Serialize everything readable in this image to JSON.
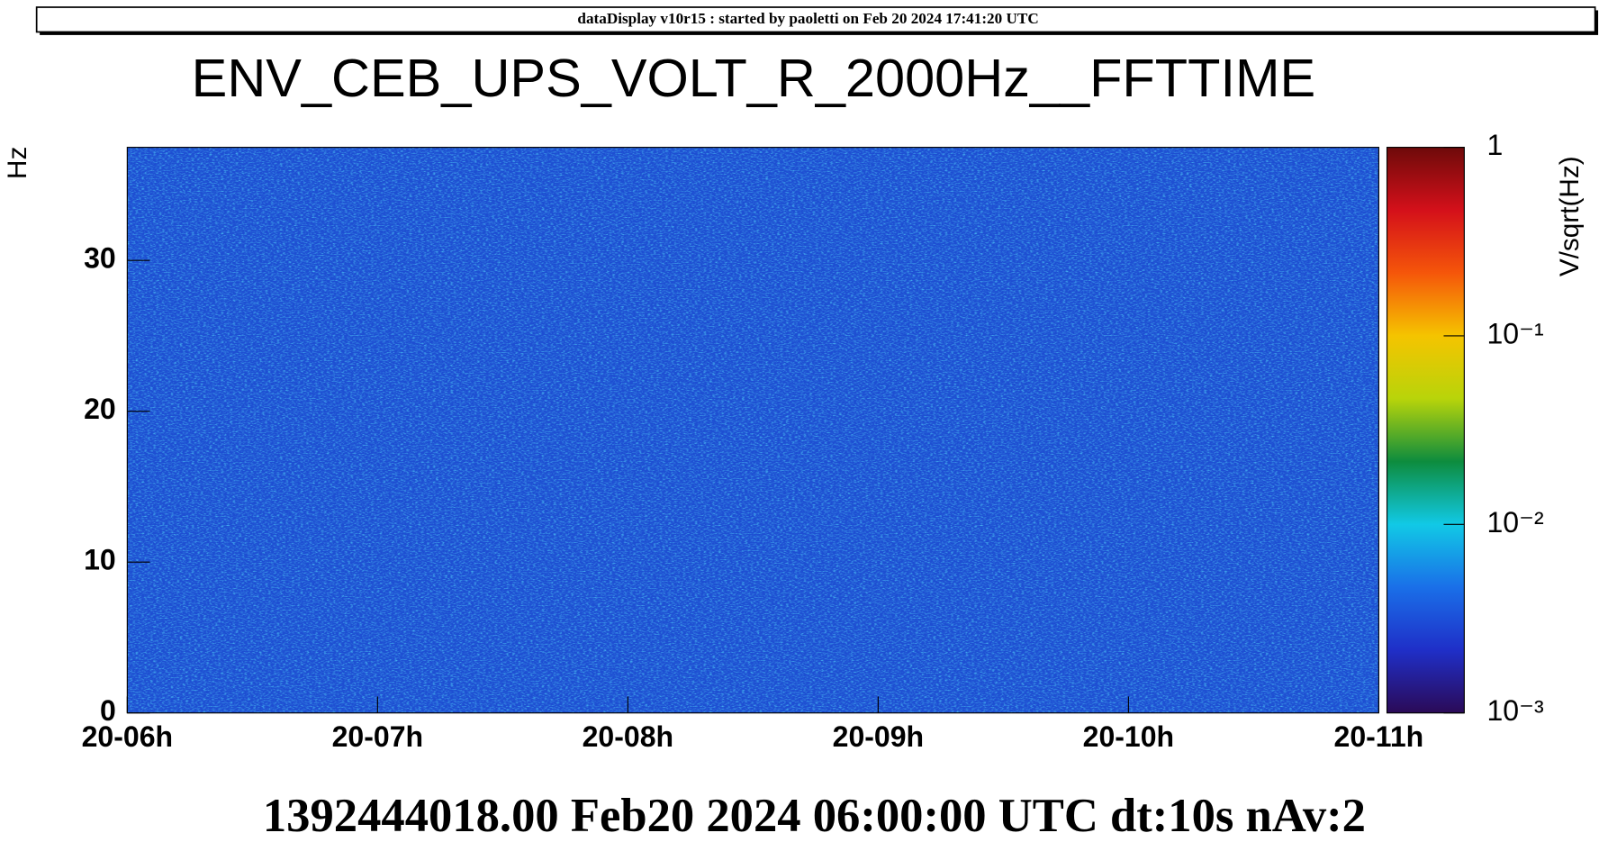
{
  "header": "dataDisplay v10r15 : started by paoletti on Feb 20 2024 17:41:20 UTC",
  "chart_data": {
    "type": "spectrogram",
    "title": "ENV_CEB_UPS_VOLT_R_2000Hz__FFTTIME",
    "ylabel": "Hz",
    "footer": "1392444018.00 Feb20 2024 06:00:00 UTC dt:10s nAv:2",
    "xlim": [
      6,
      11
    ],
    "xticks": [
      {
        "value": 6,
        "label": "20-06h"
      },
      {
        "value": 7,
        "label": "20-07h"
      },
      {
        "value": 8,
        "label": "20-08h"
      },
      {
        "value": 9,
        "label": "20-09h"
      },
      {
        "value": 10,
        "label": "20-10h"
      },
      {
        "value": 11,
        "label": "20-11h"
      }
    ],
    "ylim": [
      0,
      37.5
    ],
    "yticks": [
      0,
      10,
      20,
      30
    ],
    "zlabel": "V/sqrt(Hz)",
    "zlim": [
      0.001,
      1
    ],
    "zscale": "log",
    "zticks": [
      {
        "value": 0.001,
        "label": "10⁻³"
      },
      {
        "value": 0.01,
        "label": "10⁻²"
      },
      {
        "value": 0.1,
        "label": "10⁻¹"
      },
      1
    ],
    "colormap": [
      "#2b0a57",
      "#1f2fc8",
      "#1a6fe8",
      "#11c9e6",
      "#0d8c3e",
      "#b8d40a",
      "#f5c400",
      "#f5560a",
      "#d4101a",
      "#6e0a0a"
    ]
  }
}
